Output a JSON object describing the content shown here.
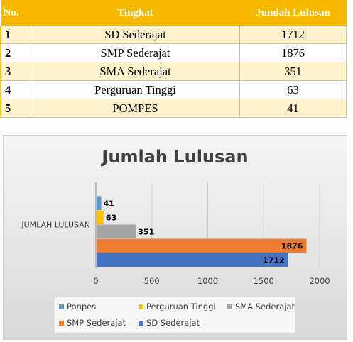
{
  "table": {
    "headers": [
      "No.",
      "Tingkat",
      "Jumlah Lulusan"
    ],
    "rows": [
      {
        "no": "1",
        "tingkat": "SD Sederajat",
        "jumlah": "1712"
      },
      {
        "no": "2",
        "tingkat": "SMP Sederajat",
        "jumlah": "1876"
      },
      {
        "no": "3",
        "tingkat": "SMA Sederajat",
        "jumlah": "351"
      },
      {
        "no": "4",
        "tingkat": "Perguruan Tinggi",
        "jumlah": "63"
      },
      {
        "no": "5",
        "tingkat": "POMPES",
        "jumlah": "41"
      }
    ]
  },
  "chart_data": {
    "type": "bar",
    "orientation": "horizontal",
    "title": "Jumlah Lulusan",
    "categories": [
      "JUMLAH LULUSAN"
    ],
    "xlim": [
      0,
      2000
    ],
    "xticks": [
      "0",
      "500",
      "1000",
      "1500",
      "2000"
    ],
    "grid": true,
    "legend_position": "bottom",
    "series": [
      {
        "name": "SD Sederajat",
        "values": [
          1712
        ],
        "color": "#4472c4"
      },
      {
        "name": "SMP Sederajat",
        "values": [
          1876
        ],
        "color": "#ed7d31"
      },
      {
        "name": "SMA Sederajat",
        "values": [
          351
        ],
        "color": "#a5a5a5"
      },
      {
        "name": "Perguruan Tinggi",
        "values": [
          63
        ],
        "color": "#ffc000"
      },
      {
        "name": "Ponpes",
        "values": [
          41
        ],
        "color": "#5b9bd5"
      }
    ]
  }
}
